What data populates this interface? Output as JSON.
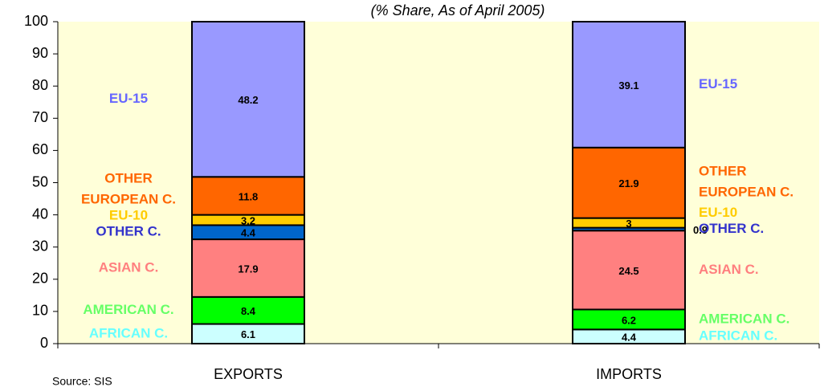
{
  "chart_data": {
    "type": "stacked_bar",
    "title": "(% Share, As of April 2005)",
    "source": "Source: SIS",
    "categories": [
      "EXPORTS",
      "IMPORTS"
    ],
    "series": [
      {
        "name": "AFRICAN C.",
        "color": "#ccffff",
        "label_color": "#66ffff",
        "values": [
          6.1,
          4.4
        ]
      },
      {
        "name": "AMERICAN C.",
        "color": "#00ff00",
        "label_color": "#66ff66",
        "values": [
          8.4,
          6.2
        ]
      },
      {
        "name": "ASIAN C.",
        "color": "#ff8080",
        "label_color": "#ff7f7f",
        "values": [
          17.9,
          24.5
        ]
      },
      {
        "name": "OTHER C.",
        "color": "#0066cc",
        "label_color": "#3333cc",
        "values": [
          4.4,
          0.9
        ]
      },
      {
        "name": "EU-10",
        "color": "#ffcc00",
        "label_color": "#ffcc00",
        "values": [
          3.2,
          3
        ]
      },
      {
        "name": "OTHER EUROPEAN C.",
        "color": "#ff6600",
        "label_color": "#ff6600",
        "values": [
          11.8,
          21.9
        ]
      },
      {
        "name": "EU-15",
        "color": "#9999ff",
        "label_color": "#6666ff",
        "values": [
          48.2,
          39.1
        ]
      }
    ],
    "ylim": [
      0,
      100
    ],
    "yticks": [
      0,
      10,
      20,
      30,
      40,
      50,
      60,
      70,
      80,
      90,
      100
    ],
    "grid": false,
    "plot_background": "#ffffd9"
  }
}
